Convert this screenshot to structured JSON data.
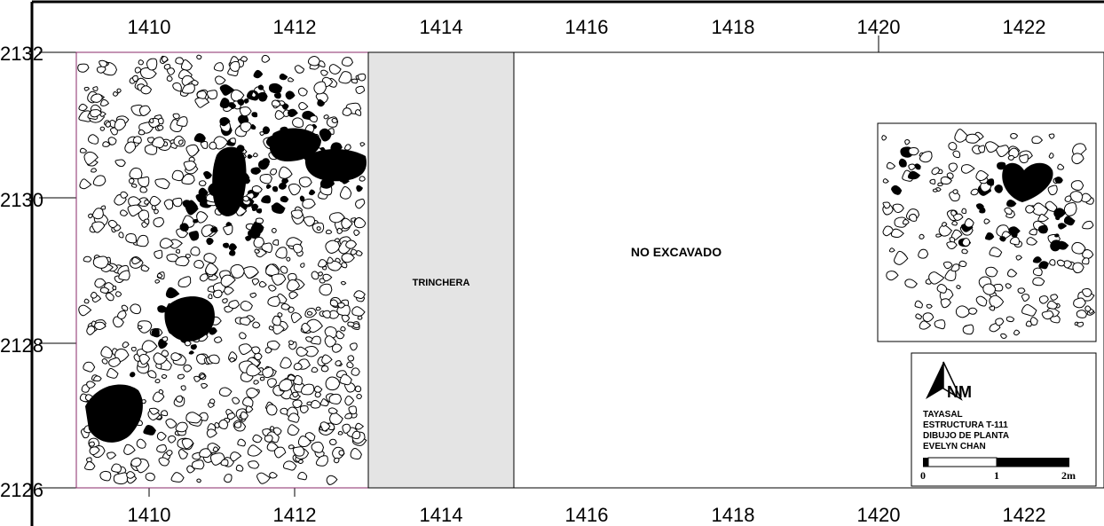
{
  "plan": {
    "x_ticks": [
      "1410",
      "1412",
      "1414",
      "1416",
      "1418",
      "1420",
      "1422"
    ],
    "y_ticks": [
      "2132",
      "2130",
      "2128",
      "2126"
    ],
    "trench_label": "TRINCHERA",
    "unexcavated_label": "NO EXCAVADO"
  },
  "legend": {
    "north_label": "NM",
    "lines": [
      "TAYASAL",
      "ESTRUCTURA T-111",
      "DIBUJO DE PLANTA",
      "EVELYN CHAN"
    ],
    "scale_labels": [
      "0",
      "1",
      "2m"
    ]
  },
  "colors": {
    "ink": "#000000",
    "trench_fill": "#e4e4e4",
    "excavation_border": "#8a2a6a"
  }
}
